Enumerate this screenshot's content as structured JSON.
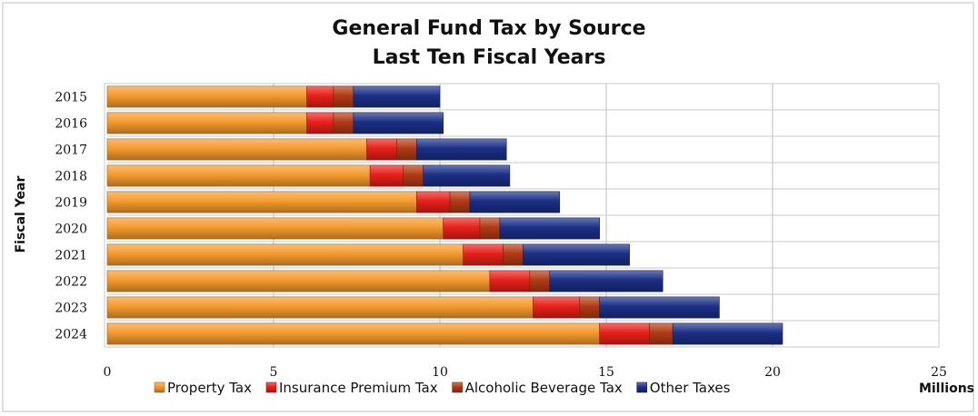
{
  "chart_data": {
    "type": "bar",
    "orientation": "horizontal",
    "stacked": true,
    "title": "General Fund Tax by Source",
    "subtitle": "Last Ten Fiscal Years",
    "ylabel": "Fiscal Year",
    "xlabel": "",
    "x_unit_label": "Millions",
    "xlim": [
      0,
      25
    ],
    "x_ticks": [
      "0",
      "5",
      "10",
      "15",
      "20",
      "25"
    ],
    "grid": "vertical",
    "legend_position": "bottom",
    "categories": [
      "2015",
      "2016",
      "2017",
      "2018",
      "2019",
      "2020",
      "2021",
      "2022",
      "2023",
      "2024"
    ],
    "series": [
      {
        "name": "Property Tax",
        "color": "#f59a2e",
        "values": [
          6.0,
          6.0,
          7.8,
          7.9,
          9.3,
          10.1,
          10.7,
          11.5,
          12.8,
          14.8
        ]
      },
      {
        "name": "Insurance Premium Tax",
        "color": "#e8201a",
        "values": [
          0.8,
          0.8,
          0.9,
          1.0,
          1.0,
          1.1,
          1.2,
          1.2,
          1.4,
          1.5
        ]
      },
      {
        "name": "Alcoholic Beverage Tax",
        "color": "#b23a14",
        "values": [
          0.6,
          0.6,
          0.6,
          0.6,
          0.6,
          0.6,
          0.6,
          0.6,
          0.6,
          0.7
        ]
      },
      {
        "name": "Other Taxes",
        "color": "#1b2f86",
        "values": [
          2.6,
          2.7,
          2.7,
          2.6,
          2.7,
          3.0,
          3.2,
          3.4,
          3.6,
          3.3
        ]
      }
    ]
  }
}
